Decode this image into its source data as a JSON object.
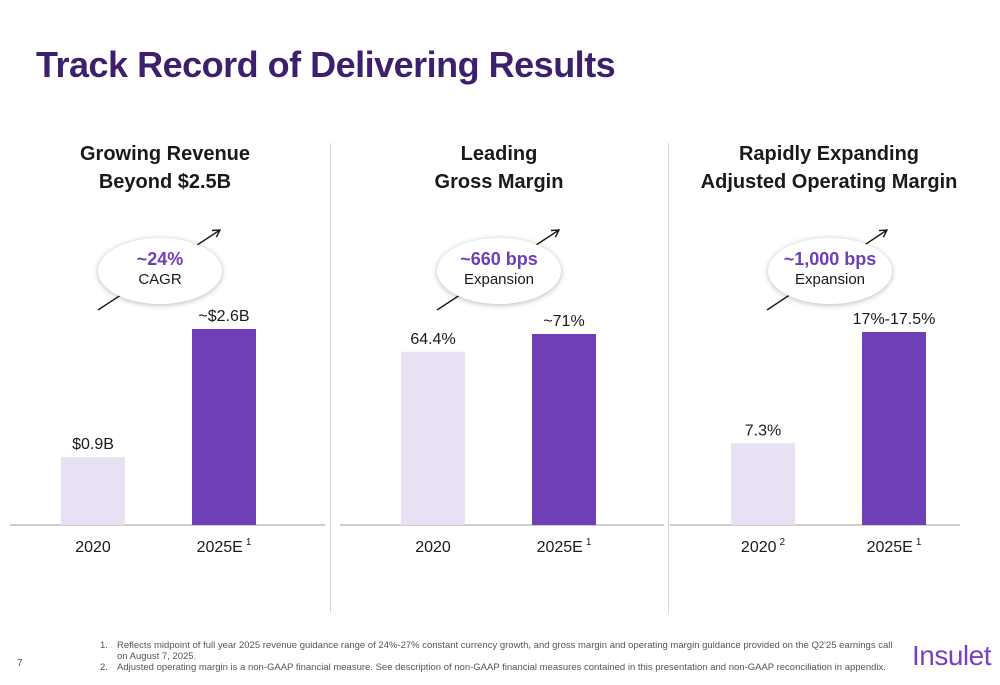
{
  "title": "Track Record of Delivering Results",
  "colors": {
    "title": "#3d1f6e",
    "bar_base": "#e8e1f4",
    "bar_target": "#6f3fb8",
    "accent_text": "#6f3fb8",
    "logo": "#7b3fc4"
  },
  "chart_data": [
    {
      "type": "bar",
      "title": "Growing Revenue Beyond $2.5B",
      "title_lines": [
        "Growing Revenue",
        "Beyond $2.5B"
      ],
      "categories": [
        "2020",
        "2025E"
      ],
      "category_superscripts": [
        "",
        "1"
      ],
      "values": [
        0.9,
        2.6
      ],
      "data_labels": [
        "$0.9B",
        "~$2.6B"
      ],
      "unit": "$B",
      "callout": {
        "value": "~24%",
        "label": "CAGR"
      }
    },
    {
      "type": "bar",
      "title": "Leading Gross Margin",
      "title_lines": [
        "Leading",
        "Gross Margin"
      ],
      "categories": [
        "2020",
        "2025E"
      ],
      "category_superscripts": [
        "",
        "1"
      ],
      "values": [
        64.4,
        71
      ],
      "data_labels": [
        "64.4%",
        "~71%"
      ],
      "unit": "%",
      "callout": {
        "value": "~660 bps",
        "label": "Expansion"
      }
    },
    {
      "type": "bar",
      "title": "Rapidly Expanding Adjusted Operating Margin",
      "title_lines": [
        "Rapidly Expanding",
        "Adjusted Operating Margin"
      ],
      "categories": [
        "2020",
        "2025E"
      ],
      "category_superscripts": [
        "2",
        "1"
      ],
      "values": [
        7.3,
        17.25
      ],
      "data_labels": [
        "7.3%",
        "17%-17.5%"
      ],
      "unit": "%",
      "callout": {
        "value": "~1,000 bps",
        "label": "Expansion"
      }
    }
  ],
  "footnotes": [
    {
      "num": "1.",
      "text": "Reflects midpoint of full year 2025 revenue guidance range of 24%-27% constant currency growth, and gross margin and operating margin guidance provided on the Q2'25 earnings call on August 7, 2025."
    },
    {
      "num": "2.",
      "text": "Adjusted operating margin is a non-GAAP financial measure. See description of non-GAAP financial measures contained in this presentation and non-GAAP reconciliation in appendix."
    }
  ],
  "page_number": "7",
  "logo_text": "Insulet"
}
